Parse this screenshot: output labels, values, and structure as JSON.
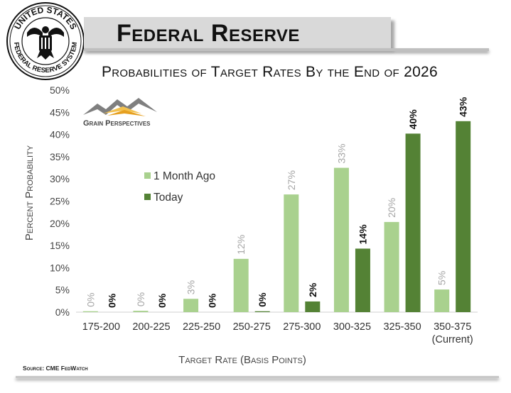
{
  "header": {
    "title": "Federal Reserve"
  },
  "seal": {
    "top_text": "UNITED STATES",
    "bottom_text": "FEDERAL RESERVE SYSTEM"
  },
  "logo": {
    "name": "Grain Perspectives"
  },
  "source": "Source: CME FedWatch",
  "colors": {
    "one_month_ago": "#a9d18e",
    "today": "#548235",
    "label_gray": "#a6a6a6"
  },
  "chart_data": {
    "type": "bar",
    "title": "Probabilities of Target Rates By the End of 2026",
    "xlabel": "Target Rate (Basis Points)",
    "ylabel": "Percent Probability",
    "ylim": [
      0,
      50
    ],
    "ytick_labels": [
      "0%",
      "5%",
      "10%",
      "15%",
      "20%",
      "25%",
      "30%",
      "35%",
      "40%",
      "45%",
      "50%"
    ],
    "categories": [
      [
        "175-200"
      ],
      [
        "200-225"
      ],
      [
        "225-250"
      ],
      [
        "250-275"
      ],
      [
        "275-300"
      ],
      [
        "300-325"
      ],
      [
        "325-350"
      ],
      [
        "350-375",
        "(Current)"
      ]
    ],
    "series": [
      {
        "name": "1 Month Ago",
        "values": [
          0.2,
          0.3,
          3,
          12,
          26.5,
          32.5,
          20.3,
          5.1
        ],
        "labels": [
          "0%",
          "0%",
          "3%",
          "12%",
          "27%",
          "33%",
          "20%",
          "5%"
        ]
      },
      {
        "name": "Today",
        "values": [
          0,
          0,
          0,
          0.2,
          2.4,
          14.3,
          40.2,
          43
        ],
        "labels": [
          "0%",
          "0%",
          "0%",
          "0%",
          "2%",
          "14%",
          "40%",
          "43%"
        ]
      }
    ],
    "legend_position": "left-middle"
  }
}
